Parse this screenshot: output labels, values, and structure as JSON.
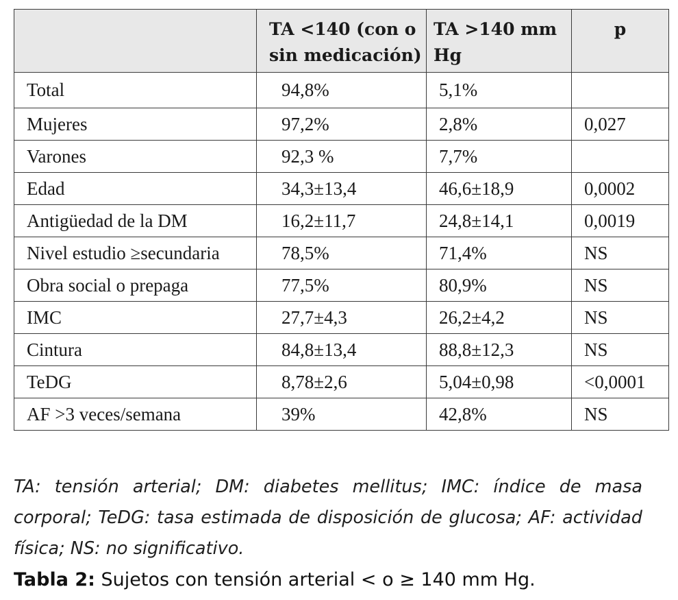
{
  "table": {
    "headers": {
      "label": "",
      "col_a": "TA <140 (con o sin medicación)",
      "col_b": "TA >140 mm Hg",
      "col_p": "p"
    },
    "rows": [
      {
        "label": "Total",
        "a": "94,8%",
        "b": "5,1%",
        "p": ""
      },
      {
        "label": "Mujeres",
        "a": "97,2%",
        "b": "2,8%",
        "p": "0,027"
      },
      {
        "label": "Varones",
        "a": "92,3 %",
        "b": "7,7%",
        "p": ""
      },
      {
        "label": "Edad",
        "a": "34,3±13,4",
        "b": "46,6±18,9",
        "p": "0,0002"
      },
      {
        "label": "Antigüedad de la DM",
        "a": "16,2±11,7",
        "b": "24,8±14,1",
        "p": "0,0019"
      },
      {
        "label": "Nivel estudio ≥secundaria",
        "a": "78,5%",
        "b": "71,4%",
        "p": "NS"
      },
      {
        "label": "Obra social o prepaga",
        "a": "77,5%",
        "b": "80,9%",
        "p": "NS"
      },
      {
        "label": "IMC",
        "a": "27,7±4,3",
        "b": "26,2±4,2",
        "p": "NS"
      },
      {
        "label": "Cintura",
        "a": "84,8±13,4",
        "b": "88,8±12,3",
        "p": "NS"
      },
      {
        "label": "TeDG",
        "a": "8,78±2,6",
        "b": "5,04±0,98",
        "p": "<0,0001"
      },
      {
        "label": "AF >3 veces/semana",
        "a": "39%",
        "b": "42,8%",
        "p": "NS"
      }
    ]
  },
  "notes": "TA: tensión arterial; DM: diabetes mellitus; IMC: índice de masa corporal; TeDG: tasa estimada de disposición de glucosa; AF: actividad física; NS: no significativo.",
  "caption": {
    "label": "Tabla 2:",
    "text": " Sujetos con tensión arterial < o ≥ 140 mm Hg."
  }
}
